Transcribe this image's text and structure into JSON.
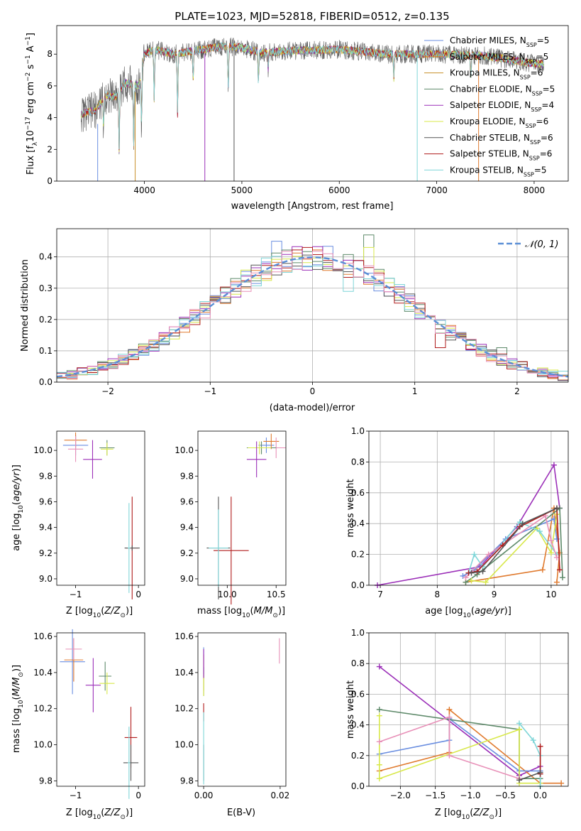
{
  "chart_data": [
    {
      "type": "line",
      "title": "PLATE=1023, MJD=52818, FIBERID=0512, z=0.135",
      "xlabel": "wavelength [Angstrom, rest frame]",
      "ylabel": "Flux [f_λ 10^-17 erg cm^-2 s^-1 A^-1]",
      "xlim": [
        3100,
        8350
      ],
      "ylim": [
        0,
        9.8
      ],
      "xticks": [
        "4000",
        "5000",
        "6000",
        "7000",
        "8000"
      ],
      "yticks": [
        "0",
        "2",
        "4",
        "6",
        "8"
      ],
      "grid": false,
      "legend_position": "right",
      "legend": [
        {
          "base": "Chabrier MILES, N",
          "sub": "SSP",
          "tail": "=5",
          "color": "#6a8ee0"
        },
        {
          "base": "Salpeter MILES, N",
          "sub": "SSP",
          "tail": "=5",
          "color": "#e07a2e"
        },
        {
          "base": "Kroupa MILES, N",
          "sub": "SSP",
          "tail": "=6",
          "color": "#c8902a"
        },
        {
          "base": "Chabrier ELODIE, N",
          "sub": "SSP",
          "tail": "=5",
          "color": "#5e8a6a"
        },
        {
          "base": "Salpeter ELODIE, N",
          "sub": "SSP",
          "tail": "=4",
          "color": "#9b2fb8"
        },
        {
          "base": "Kroupa ELODIE, N",
          "sub": "SSP",
          "tail": "=6",
          "color": "#d8e84a"
        },
        {
          "base": "Chabrier STELIB, N",
          "sub": "SSP",
          "tail": "=6",
          "color": "#555555"
        },
        {
          "base": "Salpeter STELIB, N",
          "sub": "SSP",
          "tail": "=6",
          "color": "#b01c1c"
        },
        {
          "base": "Kroupa STELIB, N",
          "sub": "SSP",
          "tail": "=5",
          "color": "#7fd6d8"
        }
      ],
      "continuum": [
        [
          3350,
          4.2
        ],
        [
          3500,
          4.5
        ],
        [
          3600,
          5.4
        ],
        [
          3700,
          5.3
        ],
        [
          3800,
          6.2
        ],
        [
          3950,
          6.0
        ],
        [
          4000,
          8.0
        ],
        [
          4100,
          8.3
        ],
        [
          4300,
          8.0
        ],
        [
          4500,
          8.2
        ],
        [
          4800,
          8.5
        ],
        [
          5000,
          8.4
        ],
        [
          5200,
          8.1
        ],
        [
          5500,
          8.2
        ],
        [
          6000,
          8.3
        ],
        [
          6500,
          8.0
        ],
        [
          7000,
          8.0
        ],
        [
          7500,
          7.9
        ],
        [
          8000,
          7.4
        ],
        [
          8100,
          7.4
        ]
      ],
      "noise_range": [
        0.3,
        1.2
      ],
      "dips": [
        [
          3580,
          3.5
        ],
        [
          3740,
          1.9
        ],
        [
          3890,
          2.2
        ],
        [
          3970,
          3.5
        ],
        [
          4100,
          5.2
        ],
        [
          4340,
          4.2
        ],
        [
          4500,
          6.4
        ],
        [
          4860,
          5.8
        ],
        [
          5170,
          6.2
        ],
        [
          5270,
          7.1
        ],
        [
          6560,
          6.5
        ],
        [
          7350,
          6.6
        ]
      ],
      "spikes": [
        [
          3520,
          0.0,
          3.6
        ],
        [
          3905,
          0.0,
          5.6
        ],
        [
          4620,
          0.0,
          8.0
        ],
        [
          4920,
          0.0,
          8.5
        ],
        [
          6800,
          0.0,
          8.0
        ],
        [
          7430,
          0.0,
          7.8
        ]
      ]
    },
    {
      "type": "bar",
      "xlabel": "(data-model)/error",
      "ylabel": "Normed distribution",
      "xlim": [
        -2.5,
        2.5
      ],
      "ylim": [
        0,
        0.49
      ],
      "xticks": [
        "−2",
        "−1",
        "0",
        "1",
        "2"
      ],
      "yticks": [
        "0.0",
        "0.1",
        "0.2",
        "0.3",
        "0.4"
      ],
      "grid": true,
      "bin_width": 0.1,
      "legend": [
        {
          "label": "𝒩(0, 1)",
          "color": "#5b8fd6"
        }
      ],
      "series_colors": [
        "#6a8ee0",
        "#e07a2e",
        "#5e8a6a",
        "#9b2fb8",
        "#d8e84a",
        "#555555",
        "#b01c1c",
        "#7fd6d8",
        "#e890b8"
      ],
      "highlights": [
        [
          -0.35,
          0.45,
          "#6a8ee0"
        ],
        [
          0.55,
          0.47,
          "#5e8a6a"
        ],
        [
          0.55,
          0.43,
          "#d8e84a"
        ],
        [
          1.25,
          0.11,
          "#b01c1c"
        ],
        [
          0.35,
          0.29,
          "#7fd6d8"
        ],
        [
          1.85,
          0.11,
          "#5e8a6a"
        ],
        [
          0.15,
          0.41,
          "#e890b8"
        ]
      ]
    },
    {
      "type": "scatter",
      "xlabel": "Z [log10(Z/Z⊙)]",
      "ylabel": "age [log10(age/yr)]",
      "xlim": [
        -1.3,
        0.1
      ],
      "ylim": [
        8.95,
        10.15
      ],
      "xticks": [
        "−1",
        "0"
      ],
      "yticks": [
        "9.0",
        "9.2",
        "9.4",
        "9.6",
        "9.8",
        "10.0"
      ],
      "points": [
        {
          "x": -1.0,
          "y": 10.04,
          "xerr": 0.2,
          "yerr": 0.08,
          "color": "#6a8ee0"
        },
        {
          "x": -1.0,
          "y": 10.08,
          "xerr": 0.18,
          "yerr": 0.06,
          "color": "#e07a2e"
        },
        {
          "x": -1.0,
          "y": 10.01,
          "xerr": 0.12,
          "yerr": 0.1,
          "color": "#e890b8"
        },
        {
          "x": -0.5,
          "y": 10.02,
          "xerr": 0.12,
          "yerr": 0.06,
          "color": "#5e8a6a"
        },
        {
          "x": -0.5,
          "y": 10.01,
          "xerr": 0.1,
          "yerr": 0.05,
          "color": "#d8e84a"
        },
        {
          "x": -0.73,
          "y": 9.93,
          "xerr": 0.15,
          "yerr": 0.15,
          "color": "#9b2fb8"
        },
        {
          "x": -0.1,
          "y": 9.24,
          "xerr": 0.1,
          "yerr": 0.4,
          "color": "#b01c1c"
        },
        {
          "x": -0.1,
          "y": 9.24,
          "xerr": 0.12,
          "yerr": 0.02,
          "color": "#555555"
        },
        {
          "x": -0.15,
          "y": 9.24,
          "xerr": 0.02,
          "yerr": 0.35,
          "color": "#7fd6d8"
        }
      ]
    },
    {
      "type": "scatter",
      "xlabel": "mass [log10(M/M⊙)]",
      "ylabel": "",
      "xlim": [
        9.7,
        10.6
      ],
      "ylim": [
        8.95,
        10.15
      ],
      "xticks": [
        "10.0",
        "10.5"
      ],
      "yticks": [
        "9.0",
        "9.2",
        "9.4",
        "9.6",
        "9.8",
        "10.0"
      ],
      "points": [
        {
          "x": 10.4,
          "y": 10.04,
          "xerr": 0.08,
          "yerr": 0.06,
          "color": "#6a8ee0"
        },
        {
          "x": 10.45,
          "y": 10.07,
          "xerr": 0.08,
          "yerr": 0.06,
          "color": "#e07a2e"
        },
        {
          "x": 10.5,
          "y": 10.02,
          "xerr": 0.1,
          "yerr": 0.08,
          "color": "#e890b8"
        },
        {
          "x": 10.35,
          "y": 10.02,
          "xerr": 0.15,
          "yerr": 0.05,
          "color": "#5e8a6a"
        },
        {
          "x": 10.33,
          "y": 10.02,
          "xerr": 0.12,
          "yerr": 0.05,
          "color": "#d8e84a"
        },
        {
          "x": 10.3,
          "y": 9.93,
          "xerr": 0.1,
          "yerr": 0.14,
          "color": "#9b2fb8"
        },
        {
          "x": 10.04,
          "y": 9.22,
          "xerr": 0.18,
          "yerr": 0.42,
          "color": "#b01c1c"
        },
        {
          "x": 9.91,
          "y": 9.24,
          "xerr": 0.12,
          "yerr": 0.4,
          "color": "#555555"
        },
        {
          "x": 9.91,
          "y": 9.24,
          "xerr": 0.1,
          "yerr": 0.3,
          "color": "#7fd6d8"
        }
      ]
    },
    {
      "type": "line",
      "xlabel": "age [log10(age/yr)]",
      "ylabel": "mass weight",
      "xlim": [
        6.8,
        10.3
      ],
      "ylim": [
        0,
        1.0
      ],
      "xticks": [
        "7",
        "8",
        "9",
        "10"
      ],
      "yticks": [
        "0.0",
        "0.2",
        "0.4",
        "0.6",
        "0.8",
        "1.0"
      ],
      "grid": true,
      "series": [
        {
          "color": "#9b2fb8",
          "values": [
            [
              6.95,
              0.0
            ],
            [
              8.75,
              0.12
            ],
            [
              9.4,
              0.38
            ],
            [
              10.05,
              0.78
            ],
            [
              10.15,
              0.5
            ]
          ]
        },
        {
          "color": "#e07a2e",
          "values": [
            [
              8.5,
              0.02
            ],
            [
              9.85,
              0.1
            ],
            [
              10.05,
              0.5
            ],
            [
              10.15,
              0.21
            ],
            [
              10.1,
              0.02
            ]
          ]
        },
        {
          "color": "#6a8ee0",
          "values": [
            [
              8.45,
              0.06
            ],
            [
              8.65,
              0.1
            ],
            [
              9.2,
              0.3
            ],
            [
              10.05,
              0.43
            ],
            [
              10.1,
              0.3
            ]
          ]
        },
        {
          "color": "#5e8a6a",
          "values": [
            [
              8.5,
              0.02
            ],
            [
              8.7,
              0.07
            ],
            [
              10.15,
              0.5
            ],
            [
              10.2,
              0.05
            ]
          ]
        },
        {
          "color": "#d8e84a",
          "values": [
            [
              8.6,
              0.03
            ],
            [
              8.85,
              0.02
            ],
            [
              9.75,
              0.37
            ],
            [
              10.0,
              0.21
            ],
            [
              10.1,
              0.46
            ]
          ]
        },
        {
          "color": "#7fd6d8",
          "values": [
            [
              8.55,
              0.08
            ],
            [
              8.65,
              0.2
            ],
            [
              8.8,
              0.12
            ],
            [
              9.45,
              0.41
            ],
            [
              9.8,
              0.35
            ],
            [
              10.1,
              0.2
            ]
          ]
        },
        {
          "color": "#e890b8",
          "values": [
            [
              8.5,
              0.05
            ],
            [
              8.9,
              0.2
            ],
            [
              9.9,
              0.45
            ],
            [
              10.0,
              0.29
            ],
            [
              10.1,
              0.18
            ]
          ]
        },
        {
          "color": "#b01c1c",
          "values": [
            [
              8.55,
              0.08
            ],
            [
              8.7,
              0.09
            ],
            [
              9.15,
              0.26
            ],
            [
              9.45,
              0.38
            ],
            [
              10.1,
              0.5
            ],
            [
              10.15,
              0.1
            ]
          ]
        },
        {
          "color": "#555555",
          "values": [
            [
              8.6,
              0.08
            ],
            [
              8.8,
              0.09
            ],
            [
              9.5,
              0.4
            ],
            [
              10.1,
              0.5
            ]
          ]
        }
      ]
    },
    {
      "type": "scatter",
      "xlabel": "Z [log10(Z/Z⊙)]",
      "ylabel": "mass [log10(M/M⊙)]",
      "xlim": [
        -1.3,
        0.1
      ],
      "ylim": [
        9.77,
        10.62
      ],
      "xticks": [
        "−1",
        "0"
      ],
      "yticks": [
        "9.8",
        "10.0",
        "10.2",
        "10.4",
        "10.6"
      ],
      "points": [
        {
          "x": -1.05,
          "y": 10.46,
          "xerr": 0.2,
          "yerr": 0.18,
          "color": "#6a8ee0"
        },
        {
          "x": -1.03,
          "y": 10.47,
          "xerr": 0.15,
          "yerr": 0.12,
          "color": "#e07a2e"
        },
        {
          "x": -1.03,
          "y": 10.53,
          "xerr": 0.13,
          "yerr": 0.06,
          "color": "#e890b8"
        },
        {
          "x": -0.53,
          "y": 10.38,
          "xerr": 0.1,
          "yerr": 0.08,
          "color": "#5e8a6a"
        },
        {
          "x": -0.5,
          "y": 10.34,
          "xerr": 0.12,
          "yerr": 0.06,
          "color": "#d8e84a"
        },
        {
          "x": -0.72,
          "y": 10.33,
          "xerr": 0.12,
          "yerr": 0.15,
          "color": "#9b2fb8"
        },
        {
          "x": -0.12,
          "y": 10.04,
          "xerr": 0.1,
          "yerr": 0.17,
          "color": "#b01c1c"
        },
        {
          "x": -0.12,
          "y": 9.9,
          "xerr": 0.12,
          "yerr": 0.1,
          "color": "#555555"
        },
        {
          "x": -0.15,
          "y": 9.9,
          "xerr": 0.02,
          "yerr": 0.2,
          "color": "#7fd6d8"
        }
      ]
    },
    {
      "type": "scatter",
      "xlabel": "E(B-V)",
      "ylabel": "",
      "xlim": [
        -0.0015,
        0.0215
      ],
      "ylim": [
        9.77,
        10.62
      ],
      "xticks": [
        "0.00",
        "0.02"
      ],
      "yticks": [
        "9.8",
        "10.0",
        "10.2",
        "10.4",
        "10.6"
      ],
      "points": [
        {
          "x": 0.0,
          "y": 10.46,
          "xerr": 0,
          "yerr": 0.08,
          "color": "#6a8ee0"
        },
        {
          "x": 0.0,
          "y": 10.4,
          "xerr": 0,
          "yerr": 0.1,
          "color": "#e07a2e"
        },
        {
          "x": 0.0,
          "y": 10.35,
          "xerr": 0,
          "yerr": 0.08,
          "color": "#5e8a6a"
        },
        {
          "x": 0.0,
          "y": 10.33,
          "xerr": 0,
          "yerr": 0.06,
          "color": "#d8e84a"
        },
        {
          "x": 0.0,
          "y": 10.45,
          "xerr": 0,
          "yerr": 0.08,
          "color": "#9b2fb8"
        },
        {
          "x": 0.0,
          "y": 10.18,
          "xerr": 0,
          "yerr": 0.05,
          "color": "#b01c1c"
        },
        {
          "x": 0.0,
          "y": 9.9,
          "xerr": 0,
          "yerr": 0.1,
          "color": "#555555"
        },
        {
          "x": 0.0,
          "y": 9.98,
          "xerr": 0,
          "yerr": 0.2,
          "color": "#7fd6d8"
        },
        {
          "x": 0.0198,
          "y": 10.52,
          "xerr": 0,
          "yerr": 0.07,
          "color": "#e890b8"
        }
      ]
    },
    {
      "type": "line",
      "xlabel": "Z [log10(Z/Z⊙)]",
      "ylabel": "mass weight",
      "xlim": [
        -2.45,
        0.4
      ],
      "ylim": [
        0,
        1.0
      ],
      "xticks": [
        "−2.0",
        "−1.5",
        "−1.0",
        "−0.5",
        "0.0"
      ],
      "yticks": [
        "0.0",
        "0.2",
        "0.4",
        "0.6",
        "0.8",
        "1.0"
      ],
      "grid": true,
      "series": [
        {
          "color": "#9b2fb8",
          "values": [
            [
              -2.3,
              0.78
            ],
            [
              -0.3,
              0.07
            ],
            [
              0.0,
              0.13
            ]
          ]
        },
        {
          "color": "#e07a2e",
          "values": [
            [
              -2.3,
              0.1
            ],
            [
              -1.3,
              0.22
            ],
            [
              -1.3,
              0.5
            ],
            [
              0.0,
              0.02
            ],
            [
              0.3,
              0.02
            ]
          ]
        },
        {
          "color": "#6a8ee0",
          "values": [
            [
              -2.3,
              0.21
            ],
            [
              -1.3,
              0.3
            ],
            [
              -1.3,
              0.44
            ],
            [
              -0.3,
              0.1
            ],
            [
              0.0,
              0.1
            ]
          ]
        },
        {
          "color": "#5e8a6a",
          "values": [
            [
              -2.3,
              0.5
            ],
            [
              -0.3,
              0.37
            ],
            [
              -0.3,
              0.05
            ],
            [
              0.0,
              0.05
            ]
          ]
        },
        {
          "color": "#d8e84a",
          "values": [
            [
              -2.3,
              0.46
            ],
            [
              -2.3,
              0.14
            ],
            [
              -2.3,
              0.05
            ],
            [
              -0.3,
              0.37
            ],
            [
              -0.3,
              0.02
            ],
            [
              0.0,
              0.02
            ]
          ]
        },
        {
          "color": "#7fd6d8",
          "values": [
            [
              -0.3,
              0.41
            ],
            [
              -0.1,
              0.3
            ],
            [
              0.0,
              0.2
            ],
            [
              0.0,
              0.0
            ]
          ]
        },
        {
          "color": "#e890b8",
          "values": [
            [
              -2.3,
              0.29
            ],
            [
              -1.3,
              0.45
            ],
            [
              -1.3,
              0.2
            ],
            [
              -0.3,
              0.05
            ]
          ]
        },
        {
          "color": "#b01c1c",
          "values": [
            [
              0.0,
              0.26
            ],
            [
              0.0,
              0.08
            ]
          ]
        },
        {
          "color": "#555555",
          "values": [
            [
              -0.3,
              0.04
            ],
            [
              0.0,
              0.09
            ]
          ]
        }
      ]
    }
  ]
}
